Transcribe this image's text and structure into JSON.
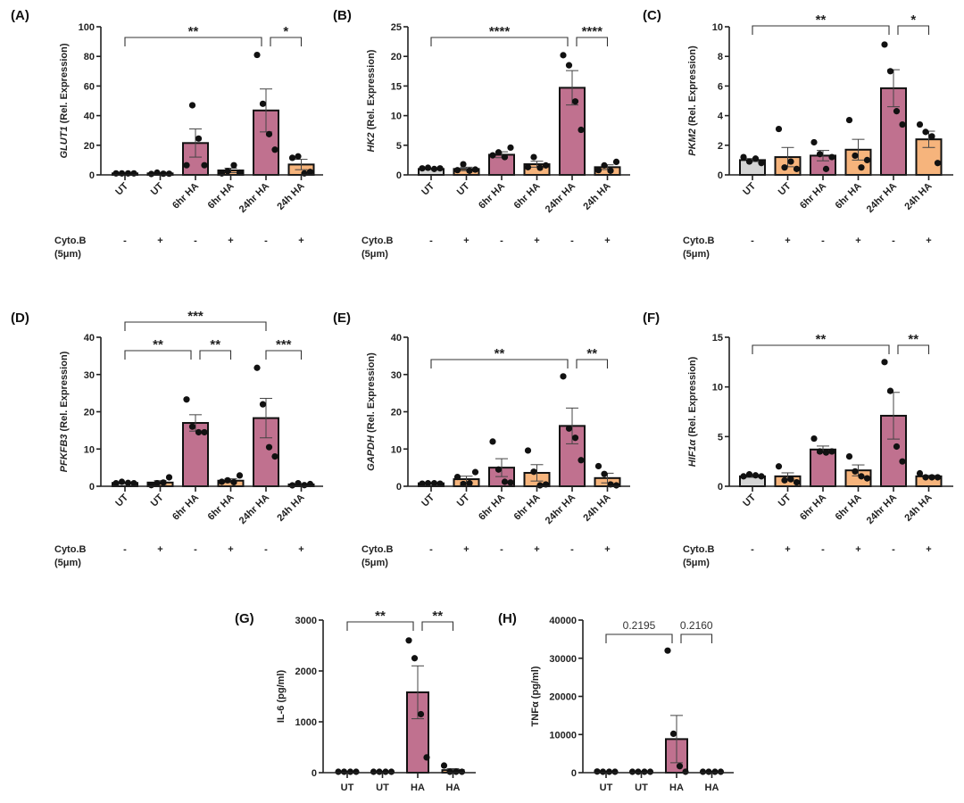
{
  "figure": {
    "colors": {
      "untreated": "#d4d4d4",
      "cytob": "#f6b47c",
      "ha": "#c0718f"
    },
    "cyto_label": "Cyto.B",
    "cyto_conc": "(5μm)",
    "cyto_signs": [
      "-",
      "+",
      "-",
      "+",
      "-",
      "+"
    ]
  },
  "chart_data": [
    {
      "id": "A",
      "panel_label": "(A)",
      "type": "bar",
      "gene": "GLUT1",
      "ylabel_suffix": " (Rel. Expression)",
      "ylabel_italic": true,
      "categories": [
        "UT",
        "UT",
        "6hr HA",
        "6hr HA",
        "24hr HA",
        "24h HA"
      ],
      "color_keys": [
        "untreated",
        "cytob",
        "ha",
        "cytob",
        "ha",
        "cytob"
      ],
      "values": [
        1.0,
        1.0,
        21.5,
        3.0,
        43.5,
        7.0
      ],
      "sem": [
        0.2,
        0.5,
        9.5,
        1.5,
        14.5,
        3.5
      ],
      "points": [
        [
          1,
          1,
          1,
          1
        ],
        [
          0.5,
          1.5,
          0.8,
          0.8
        ],
        [
          6.5,
          47,
          24.5,
          6.5
        ],
        [
          1,
          2.5,
          6.5,
          1.5
        ],
        [
          81,
          48,
          27.5,
          17
        ],
        [
          11.5,
          12.5,
          1,
          2
        ]
      ],
      "ylim": [
        0,
        100
      ],
      "yticks": [
        0,
        20,
        40,
        60,
        80,
        100
      ],
      "brackets": [
        {
          "from": 0,
          "to": 4,
          "label": "**",
          "level": 0
        },
        {
          "from": 4,
          "to": 5,
          "label": "*",
          "level": 0
        }
      ],
      "rotated_xticks": true,
      "show_cyto": true
    },
    {
      "id": "B",
      "panel_label": "(B)",
      "type": "bar",
      "gene": "HK2",
      "ylabel_suffix": " (Rel. Expression)",
      "ylabel_italic": true,
      "categories": [
        "UT",
        "UT",
        "6hr HA",
        "6hr HA",
        "24hr HA",
        "24h HA"
      ],
      "color_keys": [
        "untreated",
        "cytob",
        "ha",
        "cytob",
        "ha",
        "cytob"
      ],
      "values": [
        1.0,
        1.0,
        3.4,
        1.8,
        14.7,
        1.3
      ],
      "sem": [
        0.1,
        0.3,
        0.5,
        0.5,
        2.9,
        0.4
      ],
      "points": [
        [
          1.1,
          1.2,
          1.0,
          1.1
        ],
        [
          0.8,
          1.8,
          0.7,
          0.9
        ],
        [
          3.3,
          3.8,
          3.0,
          4.6
        ],
        [
          1.3,
          3.0,
          1.2,
          1.6
        ],
        [
          20.2,
          18.5,
          12.4,
          7.6
        ],
        [
          0.8,
          1.6,
          0.7,
          2.2
        ]
      ],
      "ylim": [
        0,
        25
      ],
      "yticks": [
        0,
        5,
        10,
        15,
        20,
        25
      ],
      "brackets": [
        {
          "from": 0,
          "to": 4,
          "label": "****",
          "level": 0
        },
        {
          "from": 4,
          "to": 5,
          "label": "****",
          "level": 0
        }
      ],
      "rotated_xticks": true,
      "show_cyto": true
    },
    {
      "id": "C",
      "panel_label": "(C)",
      "type": "bar",
      "gene": "PKM2",
      "ylabel_suffix": " (Rel. Expression)",
      "ylabel_italic": true,
      "categories": [
        "UT",
        "UT",
        "6hr HA",
        "6hr HA",
        "24hr HA",
        "24h HA"
      ],
      "color_keys": [
        "untreated",
        "cytob",
        "ha",
        "cytob",
        "ha",
        "cytob"
      ],
      "values": [
        1.0,
        1.2,
        1.3,
        1.7,
        5.85,
        2.4
      ],
      "sem": [
        0.1,
        0.65,
        0.35,
        0.7,
        1.25,
        0.55
      ],
      "points": [
        [
          1.2,
          0.9,
          1.1,
          0.8
        ],
        [
          3.1,
          0.5,
          0.9,
          0.4
        ],
        [
          2.2,
          1.4,
          0.4,
          1.2
        ],
        [
          3.7,
          1.3,
          0.5,
          1.0
        ],
        [
          8.8,
          7.0,
          4.3,
          3.4
        ],
        [
          3.4,
          2.9,
          2.6,
          0.8
        ]
      ],
      "ylim": [
        0,
        10
      ],
      "yticks": [
        0,
        2,
        4,
        6,
        8,
        10
      ],
      "brackets": [
        {
          "from": 0,
          "to": 4,
          "label": "**",
          "level": 0
        },
        {
          "from": 4,
          "to": 5,
          "label": "*",
          "level": 0
        }
      ],
      "rotated_xticks": true,
      "show_cyto": true
    },
    {
      "id": "D",
      "panel_label": "(D)",
      "type": "bar",
      "gene": "PFKFB3",
      "ylabel_suffix": " (Rel. Expression)",
      "ylabel_italic": true,
      "categories": [
        "UT",
        "UT",
        "6hr HA",
        "6hr HA",
        "24hr HA",
        "24h HA"
      ],
      "color_keys": [
        "untreated",
        "cytob",
        "ha",
        "cytob",
        "ha",
        "cytob"
      ],
      "values": [
        0.9,
        1.0,
        17.0,
        1.5,
        18.3,
        0.5
      ],
      "sem": [
        0.2,
        0.5,
        2.2,
        0.5,
        5.3,
        0.2
      ],
      "points": [
        [
          0.8,
          1.2,
          0.9,
          0.8
        ],
        [
          0.3,
          0.8,
          1.0,
          2.4
        ],
        [
          23.3,
          16,
          14.5,
          14.5
        ],
        [
          1.2,
          1.6,
          1.1,
          2.9
        ],
        [
          31.8,
          22,
          10.5,
          8
        ],
        [
          0.2,
          0.8,
          0.3,
          0.6
        ]
      ],
      "ylim": [
        0,
        40
      ],
      "yticks": [
        0,
        10,
        20,
        30,
        40
      ],
      "brackets": [
        {
          "from": 0,
          "to": 4,
          "label": "***",
          "level": 1
        },
        {
          "from": 0,
          "to": 2,
          "label": "**",
          "level": 0
        },
        {
          "from": 2,
          "to": 3,
          "label": "**",
          "level": 0
        },
        {
          "from": 4,
          "to": 5,
          "label": "***",
          "level": 0
        }
      ],
      "rotated_xticks": true,
      "show_cyto": true
    },
    {
      "id": "E",
      "panel_label": "(E)",
      "type": "bar",
      "gene": "GAPDH",
      "ylabel_suffix": " (Rel. Expression)",
      "ylabel_italic": true,
      "categories": [
        "UT",
        "UT",
        "6hr HA",
        "6hr HA",
        "24hr HA",
        "24h HA"
      ],
      "color_keys": [
        "untreated",
        "cytob",
        "ha",
        "cytob",
        "ha",
        "cytob"
      ],
      "values": [
        0.8,
        1.9,
        5.0,
        3.6,
        16.2,
        2.2
      ],
      "sem": [
        0.1,
        0.8,
        2.4,
        2.2,
        4.8,
        1.3
      ],
      "points": [
        [
          0.7,
          0.8,
          0.8,
          0.7
        ],
        [
          2.5,
          0.6,
          0.8,
          3.8
        ],
        [
          12,
          4.5,
          1.2,
          1.0
        ],
        [
          9.6,
          3.9,
          0.2,
          0.5
        ],
        [
          29.5,
          15.5,
          13,
          7
        ],
        [
          5.4,
          3.3,
          0.5,
          0.2
        ]
      ],
      "ylim": [
        0,
        40
      ],
      "yticks": [
        0,
        10,
        20,
        30,
        40
      ],
      "brackets": [
        {
          "from": 0,
          "to": 4,
          "label": "**",
          "level": 0
        },
        {
          "from": 4,
          "to": 5,
          "label": "**",
          "level": 0
        }
      ],
      "rotated_xticks": true,
      "show_cyto": true
    },
    {
      "id": "F",
      "panel_label": "(F)",
      "type": "bar",
      "gene": "HIF1α",
      "ylabel_suffix": " (Rel. Expression)",
      "ylabel_italic": true,
      "categories": [
        "UT",
        "UT",
        "6hr HA",
        "6hr HA",
        "24hr HA",
        "24h HA"
      ],
      "color_keys": [
        "untreated",
        "cytob",
        "ha",
        "cytob",
        "ha",
        "cytob"
      ],
      "values": [
        1.0,
        1.0,
        3.7,
        1.6,
        7.1,
        1.0
      ],
      "sem": [
        0.1,
        0.35,
        0.35,
        0.55,
        2.35,
        0.1
      ],
      "points": [
        [
          1.0,
          1.2,
          1.1,
          1.0
        ],
        [
          2.0,
          0.6,
          0.7,
          0.4
        ],
        [
          4.8,
          3.5,
          3.4,
          3.5
        ],
        [
          3.0,
          1.5,
          1.0,
          0.8
        ],
        [
          12.5,
          9.6,
          4.0,
          2.5
        ],
        [
          1.3,
          0.9,
          0.9,
          0.9
        ]
      ],
      "ylim": [
        0,
        15
      ],
      "yticks": [
        0,
        5,
        10,
        15
      ],
      "brackets": [
        {
          "from": 0,
          "to": 4,
          "label": "**",
          "level": 0
        },
        {
          "from": 4,
          "to": 5,
          "label": "**",
          "level": 0
        }
      ],
      "rotated_xticks": true,
      "show_cyto": true
    },
    {
      "id": "G",
      "panel_label": "(G)",
      "type": "bar",
      "gene": "IL-6",
      "ylabel_suffix": " (pg/ml)",
      "ylabel_italic": false,
      "categories": [
        "UT",
        "UT",
        "HA",
        "HA"
      ],
      "color_keys": [
        "untreated",
        "cytob",
        "ha",
        "cytob"
      ],
      "values": [
        0,
        0,
        1580,
        50
      ],
      "sem": [
        0,
        0,
        520,
        30
      ],
      "points": [
        [
          0,
          0,
          0,
          0
        ],
        [
          0,
          0,
          0,
          0
        ],
        [
          2600,
          2250,
          1150,
          300
        ],
        [
          140,
          0,
          0,
          0
        ]
      ],
      "ylim": [
        0,
        3000
      ],
      "yticks": [
        0,
        1000,
        2000,
        3000
      ],
      "brackets": [
        {
          "from": 0,
          "to": 2,
          "label": "**",
          "level": 0
        },
        {
          "from": 2,
          "to": 3,
          "label": "**",
          "level": 0
        }
      ],
      "rotated_xticks": false,
      "show_cyto": false
    },
    {
      "id": "H",
      "panel_label": "(H)",
      "type": "bar",
      "gene": "TNFα",
      "ylabel_suffix": " (pg/ml)",
      "ylabel_italic": false,
      "categories": [
        "UT",
        "UT",
        "HA",
        "HA"
      ],
      "color_keys": [
        "untreated",
        "cytob",
        "ha",
        "cytob"
      ],
      "values": [
        100,
        0,
        8800,
        0
      ],
      "sem": [
        50,
        0,
        6200,
        0
      ],
      "points": [
        [
          300,
          0,
          0,
          0
        ],
        [
          0,
          0,
          0,
          0
        ],
        [
          32000,
          10200,
          1700,
          0
        ],
        [
          0,
          0,
          0,
          0
        ]
      ],
      "ylim": [
        0,
        40000
      ],
      "yticks": [
        0,
        10000,
        20000,
        30000,
        40000
      ],
      "brackets": [
        {
          "from": 0,
          "to": 2,
          "label": "0.2195",
          "level": 0,
          "pvalue": true
        },
        {
          "from": 2,
          "to": 3,
          "label": "0.2160",
          "level": 0,
          "pvalue": true
        }
      ],
      "rotated_xticks": false,
      "show_cyto": false
    }
  ]
}
